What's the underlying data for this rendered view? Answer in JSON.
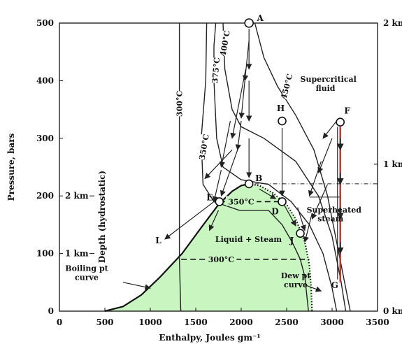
{
  "chart_data": {
    "type": "line",
    "xlabel": "Enthalpy,  Joules gm⁻¹",
    "ylabel": "Pressure, bars",
    "xlim": [
      0,
      3500
    ],
    "ylim": [
      0,
      500
    ],
    "xticks": [
      "0",
      "500",
      "1000",
      "1500",
      "2000",
      "2500",
      "3000",
      "3500"
    ],
    "yticks": [
      "0",
      "100",
      "200",
      "300",
      "400",
      "500"
    ],
    "right_axis": {
      "ticks": [
        {
          "v": 500,
          "label": "2 km"
        },
        {
          "v": 255,
          "label": "1 km"
        },
        {
          "v": 0,
          "label": "0 km"
        }
      ]
    },
    "depth_axis": {
      "label": "Depth (hydrostatic)",
      "ticks": [
        {
          "v": 200,
          "label": "2 km"
        },
        {
          "v": 100,
          "label": "1 km"
        }
      ]
    },
    "region_label": "Liquid + Steam",
    "boiling_label_1": "Boiling pt",
    "boiling_label_2": "curve",
    "dew_label_1": "Dew pt",
    "dew_label_2": "curve",
    "superheated_label_1": "Superheated",
    "superheated_label_2": "steam",
    "supercritical_label_1": "Supercritical",
    "supercritical_label_2": "fluid",
    "fill_color": "#c9f5c0",
    "arrow_color_FG": "#c0302a",
    "two_phase_boundary": [
      [
        500,
        0
      ],
      [
        700,
        8
      ],
      [
        900,
        28
      ],
      [
        1100,
        58
      ],
      [
        1350,
        100
      ],
      [
        1560,
        145
      ],
      [
        1750,
        185
      ],
      [
        1900,
        208
      ],
      [
        2000,
        218
      ],
      [
        2086,
        221
      ],
      [
        2200,
        218
      ],
      [
        2350,
        205
      ],
      [
        2500,
        185
      ],
      [
        2600,
        160
      ],
      [
        2700,
        120
      ],
      [
        2750,
        80
      ],
      [
        2770,
        40
      ],
      [
        2780,
        0
      ]
    ],
    "isotherms": [
      {
        "label": "300°C",
        "points": [
          [
            1320,
            500
          ],
          [
            1320,
            90
          ],
          [
            1335,
            0
          ]
        ]
      },
      {
        "label": "350°C",
        "points": [
          [
            1620,
            500
          ],
          [
            1610,
            400
          ],
          [
            1560,
            300
          ],
          [
            1580,
            220
          ],
          [
            1700,
            190
          ],
          [
            1980,
            175
          ],
          [
            2300,
            175
          ],
          [
            2450,
            150
          ],
          [
            2560,
            120
          ],
          [
            2650,
            90
          ],
          [
            2700,
            60
          ],
          [
            2740,
            0
          ]
        ]
      },
      {
        "label": "375°C",
        "points": [
          [
            1720,
            500
          ],
          [
            1700,
            460
          ],
          [
            1700,
            400
          ],
          [
            1730,
            300
          ],
          [
            1800,
            250
          ],
          [
            2000,
            228
          ],
          [
            2300,
            220
          ],
          [
            2550,
            190
          ],
          [
            2750,
            150
          ],
          [
            2900,
            100
          ],
          [
            3000,
            40
          ],
          [
            3050,
            0
          ]
        ]
      },
      {
        "label": "400°C",
        "points": [
          [
            1800,
            500
          ],
          [
            1820,
            420
          ],
          [
            1900,
            350
          ],
          [
            2000,
            320
          ],
          [
            2250,
            300
          ],
          [
            2600,
            260
          ],
          [
            2850,
            200
          ],
          [
            3000,
            130
          ],
          [
            3100,
            50
          ],
          [
            3150,
            0
          ]
        ]
      },
      {
        "label": "450°C",
        "points": [
          [
            2150,
            500
          ],
          [
            2250,
            440
          ],
          [
            2400,
            390
          ],
          [
            2600,
            340
          ],
          [
            2800,
            280
          ],
          [
            2950,
            200
          ],
          [
            3050,
            120
          ],
          [
            3150,
            40
          ],
          [
            3200,
            0
          ]
        ]
      }
    ],
    "isotherm_labels_in_region": [
      {
        "label": "350°C",
        "y": 190
      },
      {
        "label": "300°C",
        "y": 90
      }
    ],
    "points": [
      {
        "label": "A",
        "x": 2086,
        "y": 500
      },
      {
        "label": "B",
        "x": 2086,
        "y": 221
      },
      {
        "label": "E",
        "x": 1760,
        "y": 190
      },
      {
        "label": "D",
        "x": 2450,
        "y": 190
      },
      {
        "label": "J",
        "x": 2650,
        "y": 135
      },
      {
        "label": "H",
        "x": 2450,
        "y": 330
      },
      {
        "label": "F",
        "x": 3090,
        "y": 328
      },
      {
        "label": "G",
        "x": 3090,
        "y": 45
      },
      {
        "label": "L",
        "x": 1150,
        "y": 120
      }
    ]
  }
}
